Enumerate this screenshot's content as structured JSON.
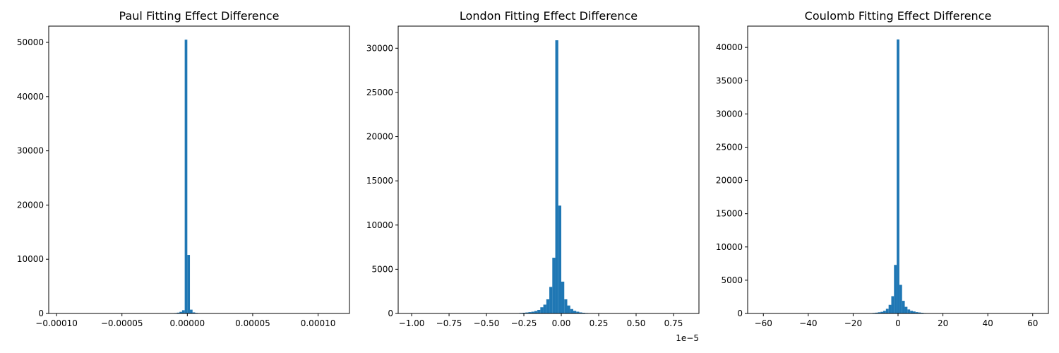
{
  "chart_data": [
    {
      "type": "bar",
      "title": "Paul Fitting Effect Difference",
      "xlabel": "",
      "ylabel": "",
      "offset_text": "",
      "xlim": [
        -0.000106,
        0.000124
      ],
      "ylim": [
        0,
        53000
      ],
      "xticks": [
        -0.0001,
        -5e-05,
        0.0,
        5e-05,
        0.0001
      ],
      "xtick_labels": [
        "−0.00010",
        "−0.00005",
        "0.00000",
        "0.00005",
        "0.00010"
      ],
      "yticks": [
        0,
        10000,
        20000,
        30000,
        40000,
        50000
      ],
      "ytick_labels": [
        "0",
        "10000",
        "20000",
        "30000",
        "40000",
        "50000"
      ],
      "bin_edges": [
        -1e-05,
        -8e-06,
        -6e-06,
        -4e-06,
        -2e-06,
        0.0,
        2e-06,
        4e-06,
        6e-06,
        8e-06
      ],
      "values": [
        80,
        150,
        300,
        600,
        50500,
        10800,
        700,
        200,
        100
      ],
      "color": "#1f77b4",
      "grid": false,
      "legend": "none"
    },
    {
      "type": "bar",
      "title": "London Fitting Effect Difference",
      "xlabel": "",
      "ylabel": "",
      "offset_text": "1e−5",
      "xlim": [
        -1.09,
        0.92
      ],
      "ylim": [
        0,
        32500
      ],
      "xticks": [
        -1.0,
        -0.75,
        -0.5,
        -0.25,
        0.0,
        0.25,
        0.5,
        0.75
      ],
      "xtick_labels": [
        "−1.00",
        "−0.75",
        "−0.50",
        "−0.25",
        "0.00",
        "0.25",
        "0.50",
        "0.75"
      ],
      "yticks": [
        0,
        5000,
        10000,
        15000,
        20000,
        25000,
        30000
      ],
      "ytick_labels": [
        "0",
        "5000",
        "10000",
        "15000",
        "20000",
        "25000",
        "30000"
      ],
      "bin_edges": [
        -0.36,
        -0.34,
        -0.32,
        -0.3,
        -0.28,
        -0.26,
        -0.24,
        -0.22,
        -0.2,
        -0.18,
        -0.16,
        -0.14,
        -0.12,
        -0.1,
        -0.08,
        -0.06,
        -0.04,
        -0.02,
        0.0,
        0.02,
        0.04,
        0.06,
        0.08,
        0.1,
        0.12,
        0.14,
        0.16,
        0.18,
        0.2,
        0.22,
        0.24
      ],
      "values": [
        15,
        20,
        30,
        40,
        60,
        80,
        110,
        150,
        200,
        280,
        400,
        700,
        1000,
        1600,
        3000,
        6300,
        30900,
        12200,
        3600,
        1600,
        900,
        500,
        300,
        200,
        120,
        80,
        50,
        30,
        20,
        10
      ],
      "color": "#1f77b4",
      "grid": false,
      "legend": "none"
    },
    {
      "type": "bar",
      "title": "Coulomb Fitting Effect Difference",
      "xlabel": "",
      "ylabel": "",
      "offset_text": "",
      "xlim": [
        -67,
        67
      ],
      "ylim": [
        0,
        43200
      ],
      "xticks": [
        -60,
        -40,
        -20,
        0,
        20,
        40,
        60
      ],
      "xtick_labels": [
        "−60",
        "−40",
        "−20",
        "0",
        "20",
        "40",
        "60"
      ],
      "yticks": [
        0,
        5000,
        10000,
        15000,
        20000,
        25000,
        30000,
        35000,
        40000
      ],
      "ytick_labels": [
        "0",
        "5000",
        "10000",
        "15000",
        "20000",
        "25000",
        "30000",
        "35000",
        "40000"
      ],
      "bin_edges": [
        -15.0,
        -13.8,
        -12.6,
        -11.4,
        -10.2,
        -9.0,
        -7.8,
        -6.6,
        -5.4,
        -4.2,
        -3.0,
        -1.8,
        -0.6,
        0.6,
        1.8,
        3.0,
        4.2,
        5.4,
        6.6,
        7.8,
        9.0,
        10.2,
        11.4,
        12.6,
        13.8
      ],
      "values": [
        20,
        30,
        50,
        80,
        120,
        180,
        250,
        400,
        700,
        1300,
        2600,
        7300,
        41200,
        4300,
        1900,
        1000,
        600,
        400,
        300,
        200,
        150,
        100,
        60,
        40
      ],
      "color": "#1f77b4",
      "grid": false,
      "legend": "none"
    }
  ]
}
